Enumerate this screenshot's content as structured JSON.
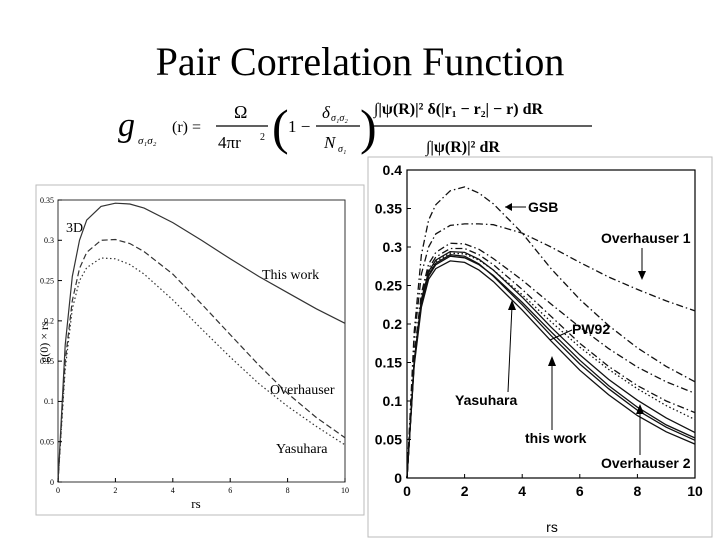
{
  "slide": {
    "title": "Pair Correlation Function"
  },
  "formula": {
    "lhs_symbol": "g",
    "lhs_subscript": "σ₁σ₂",
    "lhs_arg": "(r) =",
    "omega": "Ω",
    "denominator": "4πr",
    "one_minus": "1 −",
    "delta": "δ",
    "delta_subscript": "σ₁σ₂",
    "n_symbol": "N",
    "n_subscript": "σ₁",
    "numerator_integral": "∫|ψ(R)|² δ(|r₁ − r₂| − r) dR",
    "denominator_integral": "∫|ψ(R)|² dR"
  },
  "chart_data": [
    {
      "type": "line",
      "panel_label": "3D",
      "xlabel": "rs",
      "ylabel": "g(0) × rs",
      "xlim": [
        0,
        10
      ],
      "ylim": [
        0,
        0.35
      ],
      "x_ticks": [
        "0",
        "2",
        "4",
        "6",
        "8",
        "10"
      ],
      "y_ticks": [
        "0",
        "0.05",
        "0.1",
        "0.15",
        "0.2",
        "0.25",
        "0.3",
        "0.35"
      ],
      "x": [
        0,
        0.25,
        0.5,
        0.75,
        1,
        1.5,
        2,
        2.5,
        3,
        4,
        5,
        6,
        7,
        8,
        9,
        10
      ],
      "series": [
        {
          "name": "This work",
          "style": "solid",
          "values": [
            0,
            0.17,
            0.255,
            0.3,
            0.325,
            0.342,
            0.346,
            0.345,
            0.34,
            0.322,
            0.3,
            0.277,
            0.255,
            0.235,
            0.215,
            0.197
          ]
        },
        {
          "name": "Overhauser",
          "style": "dashed",
          "values": [
            0,
            0.15,
            0.225,
            0.265,
            0.285,
            0.3,
            0.301,
            0.296,
            0.286,
            0.258,
            0.221,
            0.183,
            0.145,
            0.11,
            0.08,
            0.055
          ]
        },
        {
          "name": "Yasuhara",
          "style": "dotted",
          "values": [
            0,
            0.14,
            0.215,
            0.25,
            0.266,
            0.278,
            0.277,
            0.27,
            0.258,
            0.226,
            0.19,
            0.155,
            0.122,
            0.094,
            0.069,
            0.046
          ]
        }
      ]
    },
    {
      "type": "line",
      "xlabel": "rs",
      "xlim": [
        0,
        10
      ],
      "ylim": [
        0,
        0.4
      ],
      "x_ticks": [
        "0",
        "2",
        "4",
        "6",
        "8",
        "10"
      ],
      "y_ticks": [
        "0",
        "0.05",
        "0.1",
        "0.15",
        "0.2",
        "0.25",
        "0.3",
        "0.35",
        "0.4"
      ],
      "x": [
        0,
        0.25,
        0.5,
        0.75,
        1,
        1.5,
        2,
        2.5,
        3,
        4,
        5,
        6,
        7,
        8,
        9,
        10
      ],
      "series": [
        {
          "name": "GSB",
          "style": "dashdot",
          "values": [
            0,
            0.19,
            0.29,
            0.335,
            0.355,
            0.373,
            0.378,
            0.37,
            0.356,
            0.318,
            0.272,
            0.232,
            0.198,
            0.169,
            0.145,
            0.125
          ]
        },
        {
          "name": "Overhauser 1",
          "style": "dashdot",
          "values": [
            0,
            0.18,
            0.265,
            0.3,
            0.317,
            0.328,
            0.33,
            0.33,
            0.329,
            0.318,
            0.3,
            0.28,
            0.261,
            0.245,
            0.23,
            0.217
          ]
        },
        {
          "name": "PW92",
          "style": "dashdot",
          "values": [
            0,
            0.16,
            0.24,
            0.278,
            0.293,
            0.305,
            0.304,
            0.297,
            0.285,
            0.257,
            0.226,
            0.196,
            0.168,
            0.144,
            0.125,
            0.11
          ]
        },
        {
          "name": "",
          "style": "dashdot",
          "values": [
            0,
            0.155,
            0.235,
            0.272,
            0.287,
            0.298,
            0.298,
            0.29,
            0.277,
            0.245,
            0.21,
            0.175,
            0.145,
            0.12,
            0.1,
            0.085
          ]
        },
        {
          "name": "",
          "style": "solid",
          "values": [
            0,
            0.152,
            0.232,
            0.268,
            0.283,
            0.294,
            0.293,
            0.284,
            0.27,
            0.235,
            0.196,
            0.16,
            0.128,
            0.101,
            0.078,
            0.059
          ]
        },
        {
          "name": "Yasuhara",
          "style": "solid",
          "values": [
            0,
            0.15,
            0.228,
            0.264,
            0.279,
            0.29,
            0.288,
            0.278,
            0.262,
            0.225,
            0.185,
            0.148,
            0.116,
            0.088,
            0.066,
            0.049
          ]
        },
        {
          "name": "this work",
          "style": "solid",
          "values": [
            0,
            0.149,
            0.226,
            0.262,
            0.277,
            0.288,
            0.286,
            0.277,
            0.263,
            0.228,
            0.19,
            0.153,
            0.12,
            0.092,
            0.069,
            0.052
          ]
        },
        {
          "name": "Overhauser 2",
          "style": "solid",
          "values": [
            0,
            0.146,
            0.222,
            0.258,
            0.272,
            0.282,
            0.28,
            0.27,
            0.255,
            0.218,
            0.178,
            0.14,
            0.108,
            0.081,
            0.06,
            0.044
          ]
        },
        {
          "name": "",
          "style": "dotted",
          "values": [
            0,
            0.151,
            0.23,
            0.266,
            0.281,
            0.292,
            0.291,
            0.283,
            0.27,
            0.238,
            0.203,
            0.17,
            0.141,
            0.116,
            0.094,
            0.076
          ]
        }
      ]
    }
  ]
}
